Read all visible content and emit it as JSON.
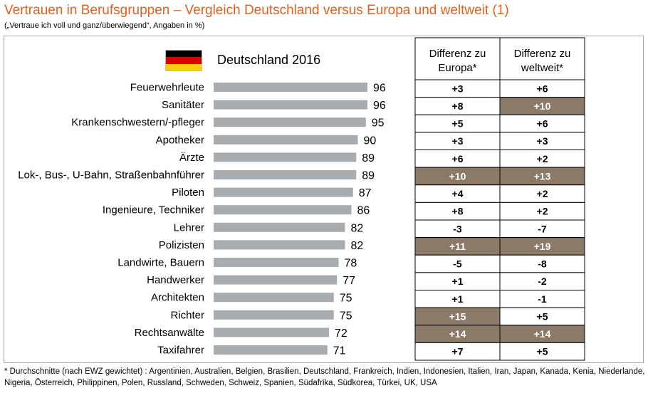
{
  "title": "Vertrauen in Berufsgruppen  – Vergleich Deutschland versus Europa und weltweit (1)",
  "subtitle": "(„Vertraue ich voll und ganz/überwiegend“,  Angaben in %)",
  "heading": "Deutschland 2016",
  "flag_colors": [
    "#000000",
    "#dd0000",
    "#ffce00"
  ],
  "table_headers": [
    "Differenz zu Europa*",
    "Differenz zu weltweit*"
  ],
  "colors": {
    "bar": "#a6acaf",
    "highlight": "#8b7a68",
    "title": "#e0621b"
  },
  "chart_data": {
    "type": "bar",
    "orientation": "horizontal",
    "title": "Deutschland 2016",
    "categories": [
      "Feuerwehrleute",
      "Sanitäter",
      "Krankenschwestern/-pfleger",
      "Apotheker",
      "Ärzte",
      "Lok-, Bus-, U-Bahn, Straßenbahnführer",
      "Piloten",
      "Ingenieure, Techniker",
      "Lehrer",
      "Polizisten",
      "Landwirte, Bauern",
      "Handwerker",
      "Architekten",
      "Richter",
      "Rechtsanwälte",
      "Taxifahrer"
    ],
    "values": [
      96,
      96,
      95,
      90,
      89,
      89,
      87,
      86,
      82,
      82,
      78,
      77,
      75,
      75,
      72,
      71
    ],
    "xlim": [
      0,
      100
    ],
    "table": {
      "columns": [
        "Differenz zu Europa*",
        "Differenz zu weltweit*"
      ],
      "europa": [
        "+3",
        "+8",
        "+5",
        "+3",
        "+6",
        "+10",
        "+4",
        "+8",
        "-3",
        "+11",
        "-5",
        "+1",
        "+1",
        "+15",
        "+14",
        "+7"
      ],
      "weltweit": [
        "+6",
        "+10",
        "+6",
        "+3",
        "+2",
        "+13",
        "+2",
        "+2",
        "-7",
        "+19",
        "-8",
        "-2",
        "-1",
        "+5",
        "+14",
        "+5"
      ],
      "highlight_europa": [
        false,
        false,
        false,
        false,
        false,
        true,
        false,
        false,
        false,
        true,
        false,
        false,
        false,
        true,
        true,
        false
      ],
      "highlight_weltweit": [
        false,
        true,
        false,
        false,
        false,
        true,
        false,
        false,
        false,
        true,
        false,
        false,
        false,
        false,
        true,
        false
      ]
    }
  },
  "footnote": "* Durchschnitte  (nach EWZ gewichtet) : Argentinien,  Australien,  Belgien,  Brasilien,  Deutschland,  Frankreich,  Indien,  Indonesien,  Italien,  Iran,  Japan, Kanada,  Kenia,  Niederlande,  Nigeria,  Österreich,  Philippinen,  Polen,  Russland,  Schweden,  Schweiz,  Spanien,  Südafrika,  Südkorea,  Türkei,  UK,  USA"
}
